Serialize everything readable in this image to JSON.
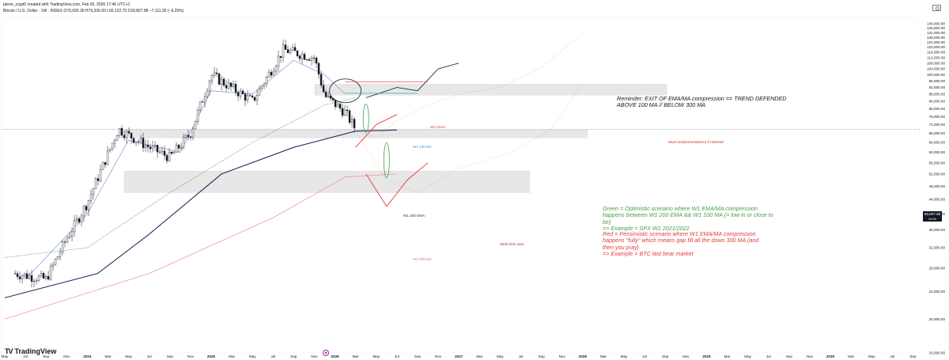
{
  "header": {
    "line1": "pierre_crypt0 created with TradingView.com, Feb 06, 2026 17:46 UTC+1",
    "line2": "Bitcoin / U.S. Dollar · 1W · INDEX  O76,926.35  H79,335.00  L60,122.75  C69,807.88  −7,111.30 (−9.25%)"
  },
  "brand": {
    "name": "TradingView"
  },
  "icons": {
    "camera": "camera-icon",
    "logo": "tradingview-logo-icon",
    "event": "event-marker-icon"
  },
  "colors": {
    "candle_up": "#131722",
    "candle_down": "#131722",
    "ema_fast": "#90a4d4",
    "sma_dotted": "#43a047",
    "ema200": "#2a2e5c",
    "ma300": "#ef9a9a",
    "zone_fill": "#e0e0e0",
    "scenario_green": "#43a047",
    "scenario_red": "#e53935"
  },
  "price_tag": {
    "value": "69,807.88",
    "sub": "2d 6h"
  },
  "annotations": {
    "reminder": [
      "Reminder: EXIT OF EMA/MA compression == TREND DEFENDED",
      "ABOVE 100 MA // BELOW 300 MA"
    ],
    "green_note": [
      "Green = Optimistic scenario where W1 EMA/MA compression",
      "happens between W1 200 EMA && W1 100 MA (= low in or close to",
      "be)",
      "=> Example = SPX W1 2021/2022"
    ],
    "red_note": [
      "Red = Pessimistic scenario where W1 EMA/MA compression",
      "happens \"fully\" which means gap fill all the down 300 MA (and",
      "then you pray)",
      "=> Example = BTC last bear market"
    ],
    "zone_top_label": "Must reclaim/resistance if retested",
    "zone_bottom_label": "Stink bids area",
    "w1_trend": "W1 trend",
    "w1_100ma": "W1 100 MA",
    "w1_200ema": "W1 200 EMA",
    "w1_300ma": "W1 300 MA"
  },
  "chart_data": {
    "type": "candlestick",
    "title": "Bitcoin / U.S. Dollar · 1W · INDEX",
    "y_scale": "log",
    "ylim": [
      16000,
      140000
    ],
    "y_ticks": [
      "140,000.00",
      "136,000.00",
      "132,000.00",
      "128,000.00",
      "124,000.00",
      "120,000.00",
      "116,000.00",
      "112,000.00",
      "108,000.00",
      "104,000.00",
      "100,000.00",
      "96,000.00",
      "92,000.00",
      "88,000.00",
      "84,000.00",
      "80,000.00",
      "76,000.00",
      "72,000.00",
      "68,000.00",
      "64,000.00",
      "60,000.00",
      "56,000.00",
      "52,000.00",
      "48,000.00",
      "44,000.00",
      "40,000.00",
      "36,000.00",
      "32,000.00",
      "28,000.00",
      "24,000.00",
      "20,000.00",
      "16,000.00"
    ],
    "x_ticks": [
      "May",
      "Jul",
      "Sep",
      "Nov",
      "2024",
      "Mar",
      "May",
      "Jul",
      "Sep",
      "Nov",
      "2025",
      "Mar",
      "May",
      "Jul",
      "Sep",
      "Nov",
      "2026",
      "Mar",
      "May",
      "Jul",
      "Sep",
      "Nov",
      "2027",
      "Mar",
      "May",
      "Jul",
      "Sep",
      "Nov",
      "2028",
      "Mar",
      "May",
      "Jul",
      "Sep",
      "Nov",
      "2029",
      "Mar",
      "May",
      "Jul",
      "Sep",
      "Nov",
      "2030",
      "Mar",
      "May",
      "Jul",
      "Sep"
    ],
    "price_path": [
      [
        "2023-05",
        27000
      ],
      [
        "2023-08",
        26000
      ],
      [
        "2023-10",
        34000
      ],
      [
        "2023-12",
        43000
      ],
      [
        "2024-03",
        70000
      ],
      [
        "2024-06",
        62000
      ],
      [
        "2024-08",
        58000
      ],
      [
        "2024-10",
        68000
      ],
      [
        "2024-12",
        100000
      ],
      [
        "2025-04",
        84000
      ],
      [
        "2025-07",
        118000
      ],
      [
        "2025-10",
        112000
      ],
      [
        "2025-11",
        87000
      ],
      [
        "2026-01",
        78000
      ],
      [
        "2026-02",
        69807.88
      ]
    ],
    "zones": [
      {
        "name": "Must reclaim/resistance if retested",
        "from": 87500,
        "to": 94000
      },
      {
        "name": "W1 200 EMA band",
        "from": 66000,
        "to": 69500
      },
      {
        "name": "Stink bids area",
        "from": 46000,
        "to": 53000
      }
    ],
    "series": [
      {
        "name": "W1 trend"
      },
      {
        "name": "W1 100 MA"
      },
      {
        "name": "W1 200 EMA"
      },
      {
        "name": "W1 300 MA"
      }
    ]
  }
}
